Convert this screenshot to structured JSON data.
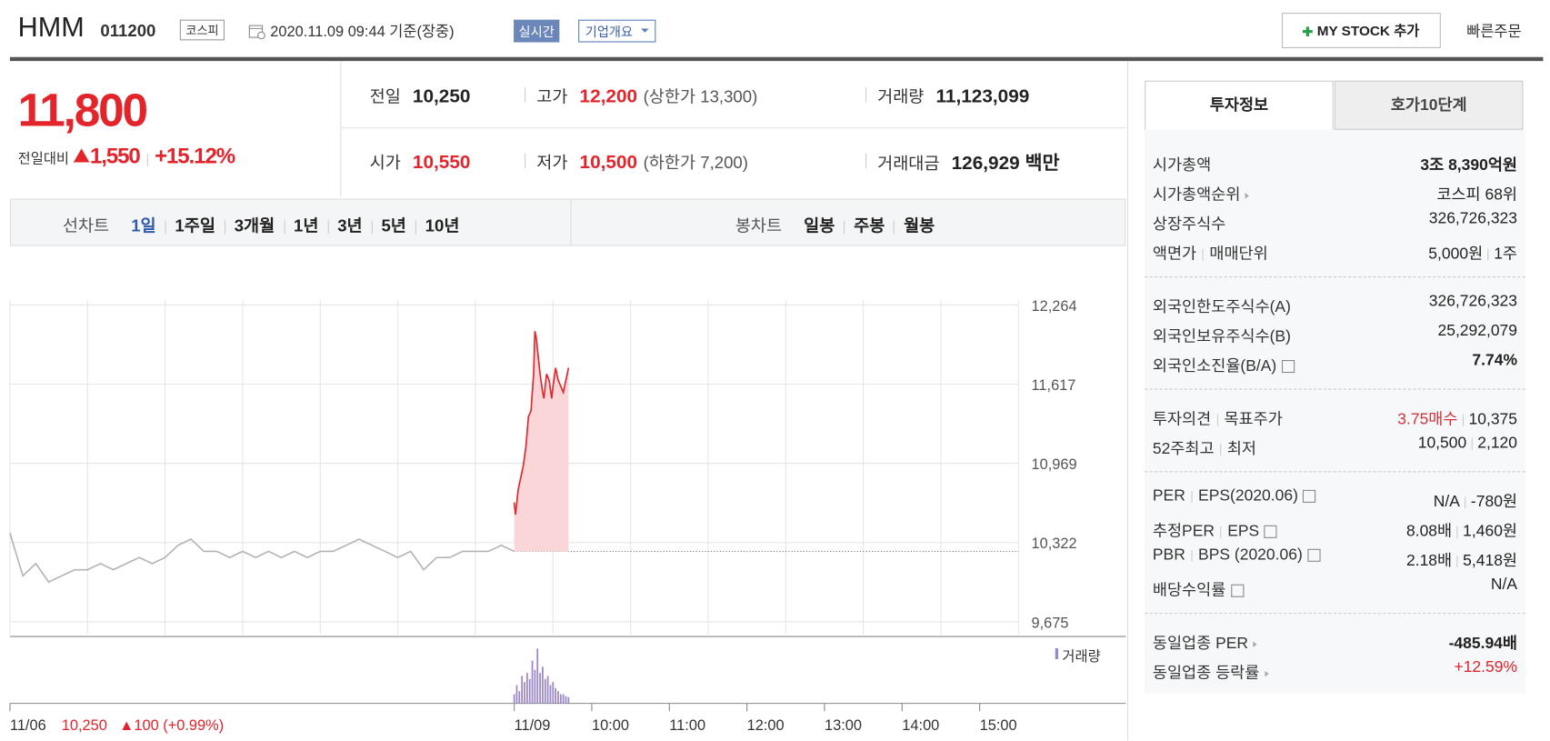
{
  "header": {
    "title": "HMM",
    "code": "011200",
    "market": "코스피",
    "datetime": "2020.11.09 09:44 기준(장중)",
    "realtime": "실시간",
    "company": "기업개요",
    "my_stock": "MY STOCK 추가",
    "quick_order": "빠른주문"
  },
  "quote": {
    "price": "11,800",
    "change_label": "전일대비",
    "change": "1,550",
    "change_rate": "+15.12%",
    "items": [
      {
        "label": "전일",
        "value": "10,250",
        "color": "#222"
      },
      {
        "label": "고가",
        "value": "12,200",
        "note": "(상한가 13,300)",
        "color": "#e3242b"
      },
      {
        "label": "거래량",
        "value": "11,123,099",
        "color": "#222"
      },
      {
        "label": "시가",
        "value": "10,550",
        "color": "#e3242b"
      },
      {
        "label": "저가",
        "value": "10,500",
        "note": "(하한가 7,200)",
        "color": "#e3242b"
      },
      {
        "label": "거래대금",
        "value": "126,929 백만",
        "color": "#222"
      }
    ]
  },
  "tabs": {
    "line_label": "선차트",
    "line": [
      "1일",
      "1주일",
      "3개월",
      "1년",
      "3년",
      "5년",
      "10년"
    ],
    "active": 0,
    "candle_label": "봉차트",
    "candle": [
      "일봉",
      "주봉",
      "월봉"
    ]
  },
  "chart_data": {
    "type": "line",
    "xlim": [
      0,
      780
    ],
    "ylim": [
      9675,
      12264
    ],
    "y2lim": [
      0,
      1000000
    ],
    "yticks": [
      {
        "value": 12264,
        "label": "12,264"
      },
      {
        "value": 11617,
        "label": "11,617"
      },
      {
        "value": 10969,
        "label": "10,969"
      },
      {
        "value": 10322,
        "label": "10,322"
      },
      {
        "value": 9675,
        "label": "9,675"
      }
    ],
    "xticks": [
      {
        "value": 0,
        "label": "11/06"
      },
      {
        "value": 390,
        "label": "11/09"
      },
      {
        "value": 450,
        "label": "10:00"
      },
      {
        "value": 510,
        "label": "11:00"
      },
      {
        "value": 570,
        "label": "12:00"
      },
      {
        "value": 630,
        "label": "13:00"
      },
      {
        "value": 690,
        "label": "14:00"
      },
      {
        "value": 750,
        "label": "15:00"
      }
    ],
    "xgrid": [
      0,
      60,
      120,
      180,
      240,
      300,
      360,
      420,
      480,
      540,
      600,
      660,
      720,
      780
    ],
    "ref_line": 10250,
    "series": [
      {
        "color": "#b4b4b4",
        "x": [
          0,
          10,
          20,
          30,
          40,
          50,
          60,
          70,
          80,
          90,
          100,
          110,
          120,
          130,
          140,
          150,
          160,
          170,
          180,
          190,
          200,
          210,
          220,
          230,
          240,
          250,
          260,
          270,
          280,
          290,
          300,
          310,
          320,
          330,
          340,
          350,
          360,
          370,
          380,
          390
        ],
        "values": [
          10400,
          10050,
          10150,
          10000,
          10050,
          10100,
          10100,
          10150,
          10100,
          10150,
          10200,
          10150,
          10200,
          10300,
          10350,
          10250,
          10250,
          10200,
          10250,
          10200,
          10250,
          10200,
          10250,
          10200,
          10250,
          10250,
          10300,
          10350,
          10300,
          10250,
          10200,
          10250,
          10100,
          10200,
          10200,
          10250,
          10250,
          10250,
          10300,
          10250
        ]
      },
      {
        "color": "#e3242b",
        "fill": "#fbd6d8",
        "x": [
          390,
          391,
          393,
          395,
          397,
          399,
          401,
          403,
          405,
          406,
          407,
          409,
          410,
          412,
          413,
          415,
          417,
          419,
          420,
          422,
          424,
          426,
          428,
          430,
          432
        ],
        "values": [
          10650,
          10550,
          10750,
          10850,
          10950,
          11100,
          11350,
          11400,
          11700,
          12050,
          12000,
          11800,
          11700,
          11550,
          11500,
          11700,
          11650,
          11500,
          11600,
          11750,
          11650,
          11600,
          11550,
          11650,
          11750
        ]
      },
      {
        "name": "거래량",
        "type": "bar",
        "axis": "y2",
        "color": "#9a86c8",
        "x": [
          390,
          392,
          394,
          396,
          398,
          400,
          402,
          404,
          406,
          408,
          410,
          412,
          414,
          416,
          418,
          420,
          422,
          424,
          426,
          428,
          430,
          432
        ],
        "values": [
          150000,
          300000,
          200000,
          450000,
          350000,
          500000,
          400000,
          700000,
          550000,
          900000,
          500000,
          600000,
          400000,
          450000,
          300000,
          350000,
          250000,
          200000,
          150000,
          150000,
          120000,
          100000
        ]
      }
    ],
    "footer": {
      "close": "10,250",
      "change": "▲100 (+0.99%)"
    }
  },
  "info": {
    "tabs": [
      "투자정보",
      "호가10단계"
    ],
    "groups": [
      {
        "rows": [
          {
            "label": [
              "시가총액"
            ],
            "value": [
              "3조 8,390억원"
            ],
            "bold": true
          },
          {
            "label": [
              "시가총액순위"
            ],
            "icon": "arrow",
            "value": [
              "코스피 68위"
            ]
          },
          {
            "label": [
              "상장주식수"
            ],
            "value": [
              "326,726,323"
            ]
          },
          {
            "label": [
              "액면가",
              "매매단위"
            ],
            "value": [
              "5,000원",
              "1주"
            ]
          }
        ]
      },
      {
        "rows": [
          {
            "label": [
              "외국인한도주식수(A)"
            ],
            "value": [
              "326,726,323"
            ]
          },
          {
            "label": [
              "외국인보유주식수(B)"
            ],
            "value": [
              "25,292,079"
            ]
          },
          {
            "label": [
              "외국인소진율(B/A)"
            ],
            "icon": "help",
            "value": [
              "7.74%"
            ],
            "bold": true
          }
        ]
      },
      {
        "rows": [
          {
            "label": [
              "투자의견",
              "목표주가"
            ],
            "value": [
              "3.75매수",
              "10,375"
            ],
            "color": "#d0343a"
          },
          {
            "label": [
              "52주최고",
              "최저"
            ],
            "value": [
              "10,500",
              "2,120"
            ]
          }
        ]
      },
      {
        "rows": [
          {
            "label": [
              "PER",
              "EPS(2020.06)"
            ],
            "icon": "help",
            "value": [
              "N/A",
              "-780원"
            ]
          },
          {
            "label": [
              "추정PER",
              "EPS"
            ],
            "icon": "help",
            "value": [
              "8.08배",
              "1,460원"
            ]
          },
          {
            "label": [
              "PBR",
              "BPS (2020.06)"
            ],
            "icon": "help",
            "value": [
              "2.18배",
              "5,418원"
            ]
          },
          {
            "label": [
              "배당수익률"
            ],
            "icon": "help",
            "value": [
              "N/A"
            ]
          }
        ]
      },
      {
        "rows": [
          {
            "label": [
              "동일업종 PER"
            ],
            "icon": "arrow",
            "value": [
              "-485.94배"
            ],
            "bold": true
          },
          {
            "label": [
              "동일업종 등락률"
            ],
            "icon": "arrow",
            "value": [
              "+12.59%"
            ],
            "color": "#e3242b"
          }
        ]
      }
    ]
  }
}
